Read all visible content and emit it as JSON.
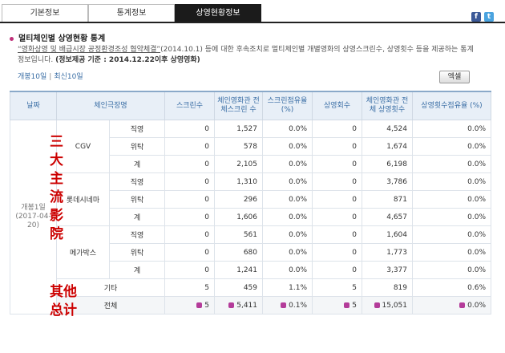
{
  "tabs": [
    "기본정보",
    "통계정보",
    "상영현황정보"
  ],
  "section_title": "멀티체인별 상영현황 통계",
  "description_link": "“영화상영 및 배급시장 공정환경조성 협약체결”",
  "description_text": "(2014.10.1) 등에 대한 후속조치로 멀티체인별 개별영화의 상영스크린수, 상영횟수 등을 제공하는 통계정보입니다.",
  "description_note": "(정보제공 기준 : 2014.12.22이후 상영영화)",
  "filters": [
    "개봉10일",
    "최신10일"
  ],
  "excel_button": "엑셀",
  "table": {
    "headers": [
      "날짜",
      "체인극장명",
      "스크린수",
      "체인영화관 전체스크린 수",
      "스크린점유율 (%)",
      "상영회수",
      "체인영화관 전체 상영횟수",
      "상영횟수점유율 (%)"
    ],
    "date": "개봉1일 (2017-04-20)",
    "groups": [
      {
        "name": "CGV",
        "rows": [
          [
            "직영",
            "0",
            "1,527",
            "0.0%",
            "0",
            "4,524",
            "0.0%"
          ],
          [
            "위탁",
            "0",
            "578",
            "0.0%",
            "0",
            "1,674",
            "0.0%"
          ],
          [
            "계",
            "0",
            "2,105",
            "0.0%",
            "0",
            "6,198",
            "0.0%"
          ]
        ]
      },
      {
        "name": "롯데시네마",
        "rows": [
          [
            "직영",
            "0",
            "1,310",
            "0.0%",
            "0",
            "3,786",
            "0.0%"
          ],
          [
            "위탁",
            "0",
            "296",
            "0.0%",
            "0",
            "871",
            "0.0%"
          ],
          [
            "계",
            "0",
            "1,606",
            "0.0%",
            "0",
            "4,657",
            "0.0%"
          ]
        ]
      },
      {
        "name": "메가박스",
        "rows": [
          [
            "직영",
            "0",
            "561",
            "0.0%",
            "0",
            "1,604",
            "0.0%"
          ],
          [
            "위탁",
            "0",
            "680",
            "0.0%",
            "0",
            "1,773",
            "0.0%"
          ],
          [
            "계",
            "0",
            "1,241",
            "0.0%",
            "0",
            "3,377",
            "0.0%"
          ]
        ]
      }
    ],
    "other": [
      "기타",
      "5",
      "459",
      "1.1%",
      "5",
      "819",
      "0.6%"
    ],
    "total": [
      "전체",
      "5",
      "5,411",
      "0.1%",
      "5",
      "15,051",
      "0.0%"
    ]
  },
  "annotations": {
    "main": "三大主流影院",
    "other": "其他",
    "total": "总计"
  }
}
